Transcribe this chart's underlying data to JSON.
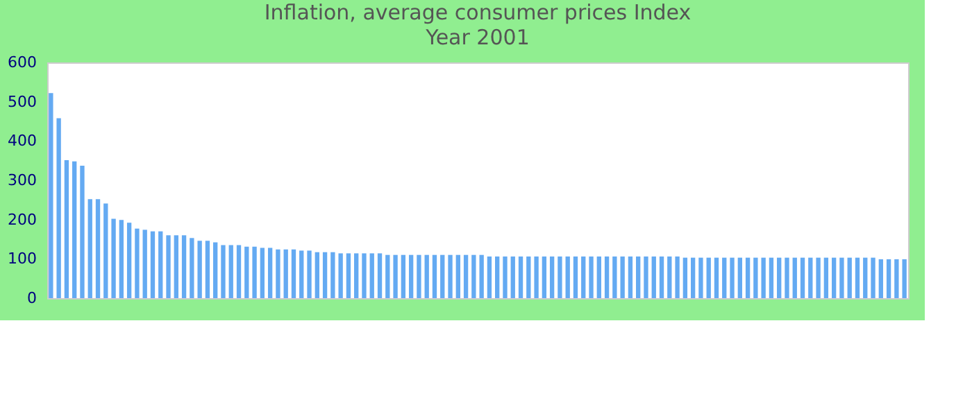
{
  "chart_data": {
    "type": "bar",
    "title": "Inflation, average consumer prices  Index",
    "subtitle": "Year 2001",
    "categories": [
      null,
      null,
      null,
      null,
      null,
      null,
      null,
      null,
      null,
      null,
      null,
      null,
      null,
      null,
      null,
      null,
      null,
      null,
      null,
      null,
      null,
      null,
      null,
      null,
      null,
      null,
      null,
      null,
      null,
      null,
      null,
      null,
      null,
      null,
      null,
      null,
      null,
      null,
      null,
      null,
      null,
      null,
      null,
      null,
      null,
      null,
      null,
      null,
      null,
      null,
      null,
      null,
      null,
      null,
      null,
      null,
      null,
      null,
      null,
      null,
      null,
      null,
      null,
      null,
      null,
      null,
      null,
      null,
      null,
      null,
      null,
      null,
      null,
      null,
      null,
      null,
      null,
      null,
      null,
      null,
      null,
      null,
      null,
      null,
      null,
      null,
      null,
      null,
      null,
      null,
      null,
      null,
      null,
      null,
      null,
      null,
      null,
      null,
      null,
      null,
      null,
      null,
      null,
      null,
      null,
      null,
      null,
      null,
      null,
      null
    ],
    "values": [
      522,
      458,
      351,
      348,
      337,
      252,
      252,
      241,
      202,
      199,
      192,
      177,
      174,
      170,
      170,
      160,
      160,
      160,
      153,
      146,
      146,
      142,
      135,
      135,
      135,
      131,
      131,
      128,
      128,
      124,
      124,
      124,
      121,
      121,
      117,
      117,
      117,
      114,
      114,
      114,
      114,
      114,
      114,
      110,
      110,
      110,
      110,
      110,
      110,
      110,
      110,
      110,
      110,
      110,
      110,
      110,
      106,
      106,
      106,
      106,
      106,
      106,
      106,
      106,
      106,
      106,
      106,
      106,
      106,
      106,
      106,
      106,
      106,
      106,
      106,
      106,
      106,
      106,
      106,
      106,
      106,
      103,
      103,
      103,
      103,
      103,
      103,
      103,
      103,
      103,
      103,
      103,
      103,
      103,
      103,
      103,
      103,
      103,
      103,
      103,
      103,
      103,
      103,
      103,
      103,
      103,
      99,
      99,
      99,
      99
    ],
    "color": "#64aaf2",
    "ylim": [
      0,
      600
    ],
    "yticks": [
      0,
      100,
      200,
      300,
      400,
      500,
      600
    ],
    "grid": false
  }
}
